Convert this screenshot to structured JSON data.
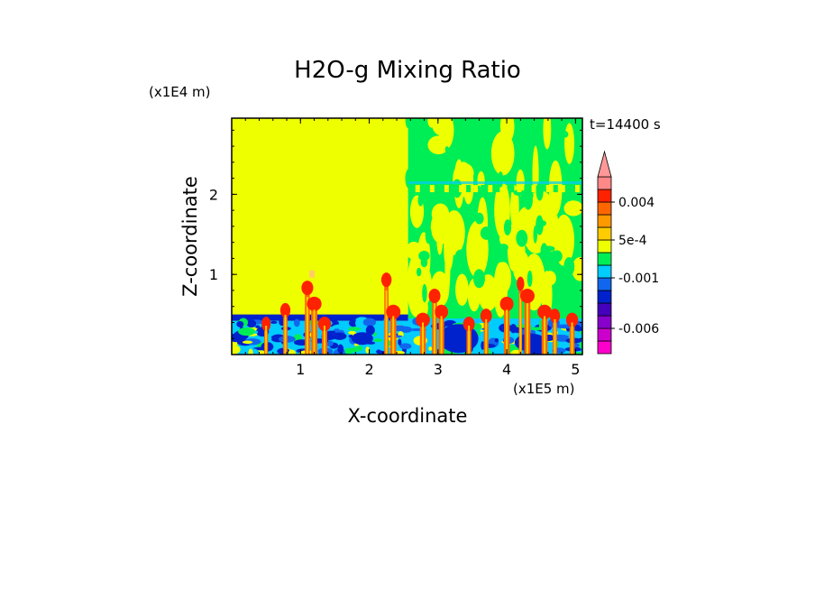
{
  "chart_data": {
    "type": "heatmap",
    "title": "H2O-g Mixing Ratio",
    "xlabel": "X-coordinate",
    "ylabel": "Z-coordinate",
    "x_unit": "(x1E5 m)",
    "y_unit": "(x1E4 m)",
    "time_label": "t=14400 s",
    "xlim": [
      0,
      5.1
    ],
    "ylim": [
      0,
      2.95
    ],
    "x_ticks": [
      1,
      2,
      3,
      4,
      5
    ],
    "y_ticks": [
      1,
      2
    ],
    "colorbar": {
      "extend": "max",
      "labels": [
        "0.004",
        "5e-4",
        "-0.001",
        "-0.006"
      ],
      "label_values": [
        0.004,
        0.0005,
        -0.001,
        -0.006
      ],
      "levels": [
        -0.009,
        -0.0075,
        -0.006,
        -0.0045,
        -0.003,
        -0.0015,
        -0.001,
        -0.0005,
        0.0,
        0.0005,
        0.001,
        0.0025,
        0.004,
        0.0055,
        0.007
      ],
      "colors": [
        "#ff00cc",
        "#cc00cc",
        "#8800cc",
        "#4400bb",
        "#0022cc",
        "#1166ee",
        "#00ccff",
        "#00ee55",
        "#eeff00",
        "#ffcc00",
        "#ff9900",
        "#ff6600",
        "#ff2200",
        "#ff8888"
      ],
      "extend_color": "#ff9999"
    },
    "regions": {
      "left_background": "#eeff00",
      "right_background": "#00ee55",
      "boundary_layer": "#00ccff",
      "deep_band": "#0022cc"
    },
    "grid": false
  }
}
